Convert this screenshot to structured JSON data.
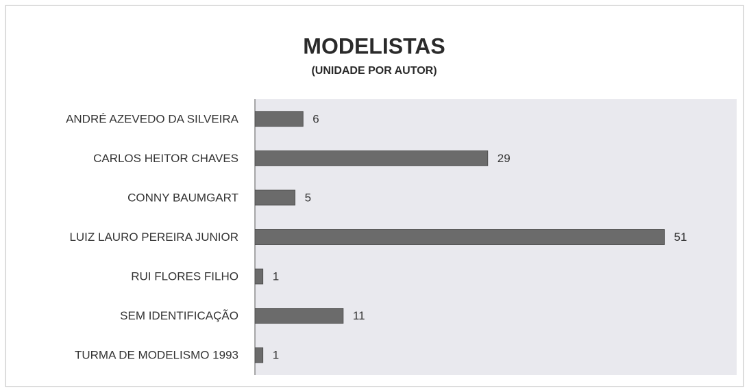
{
  "chart_data": {
    "type": "bar",
    "orientation": "horizontal",
    "title": "MODELISTAS",
    "subtitle": "(UNIDADE POR AUTOR)",
    "categories": [
      "ANDRÉ AZEVEDO DA SILVEIRA",
      "CARLOS HEITOR CHAVES",
      "CONNY BAUMGART",
      "LUIZ LAURO PEREIRA JUNIOR",
      "RUI FLORES FILHO",
      "SEM IDENTIFICAÇÃO",
      "TURMA DE MODELISMO 1993"
    ],
    "values": [
      6,
      29,
      5,
      51,
      1,
      11,
      1
    ],
    "color": "#6b6b6b",
    "xlim": [
      0,
      60
    ]
  }
}
